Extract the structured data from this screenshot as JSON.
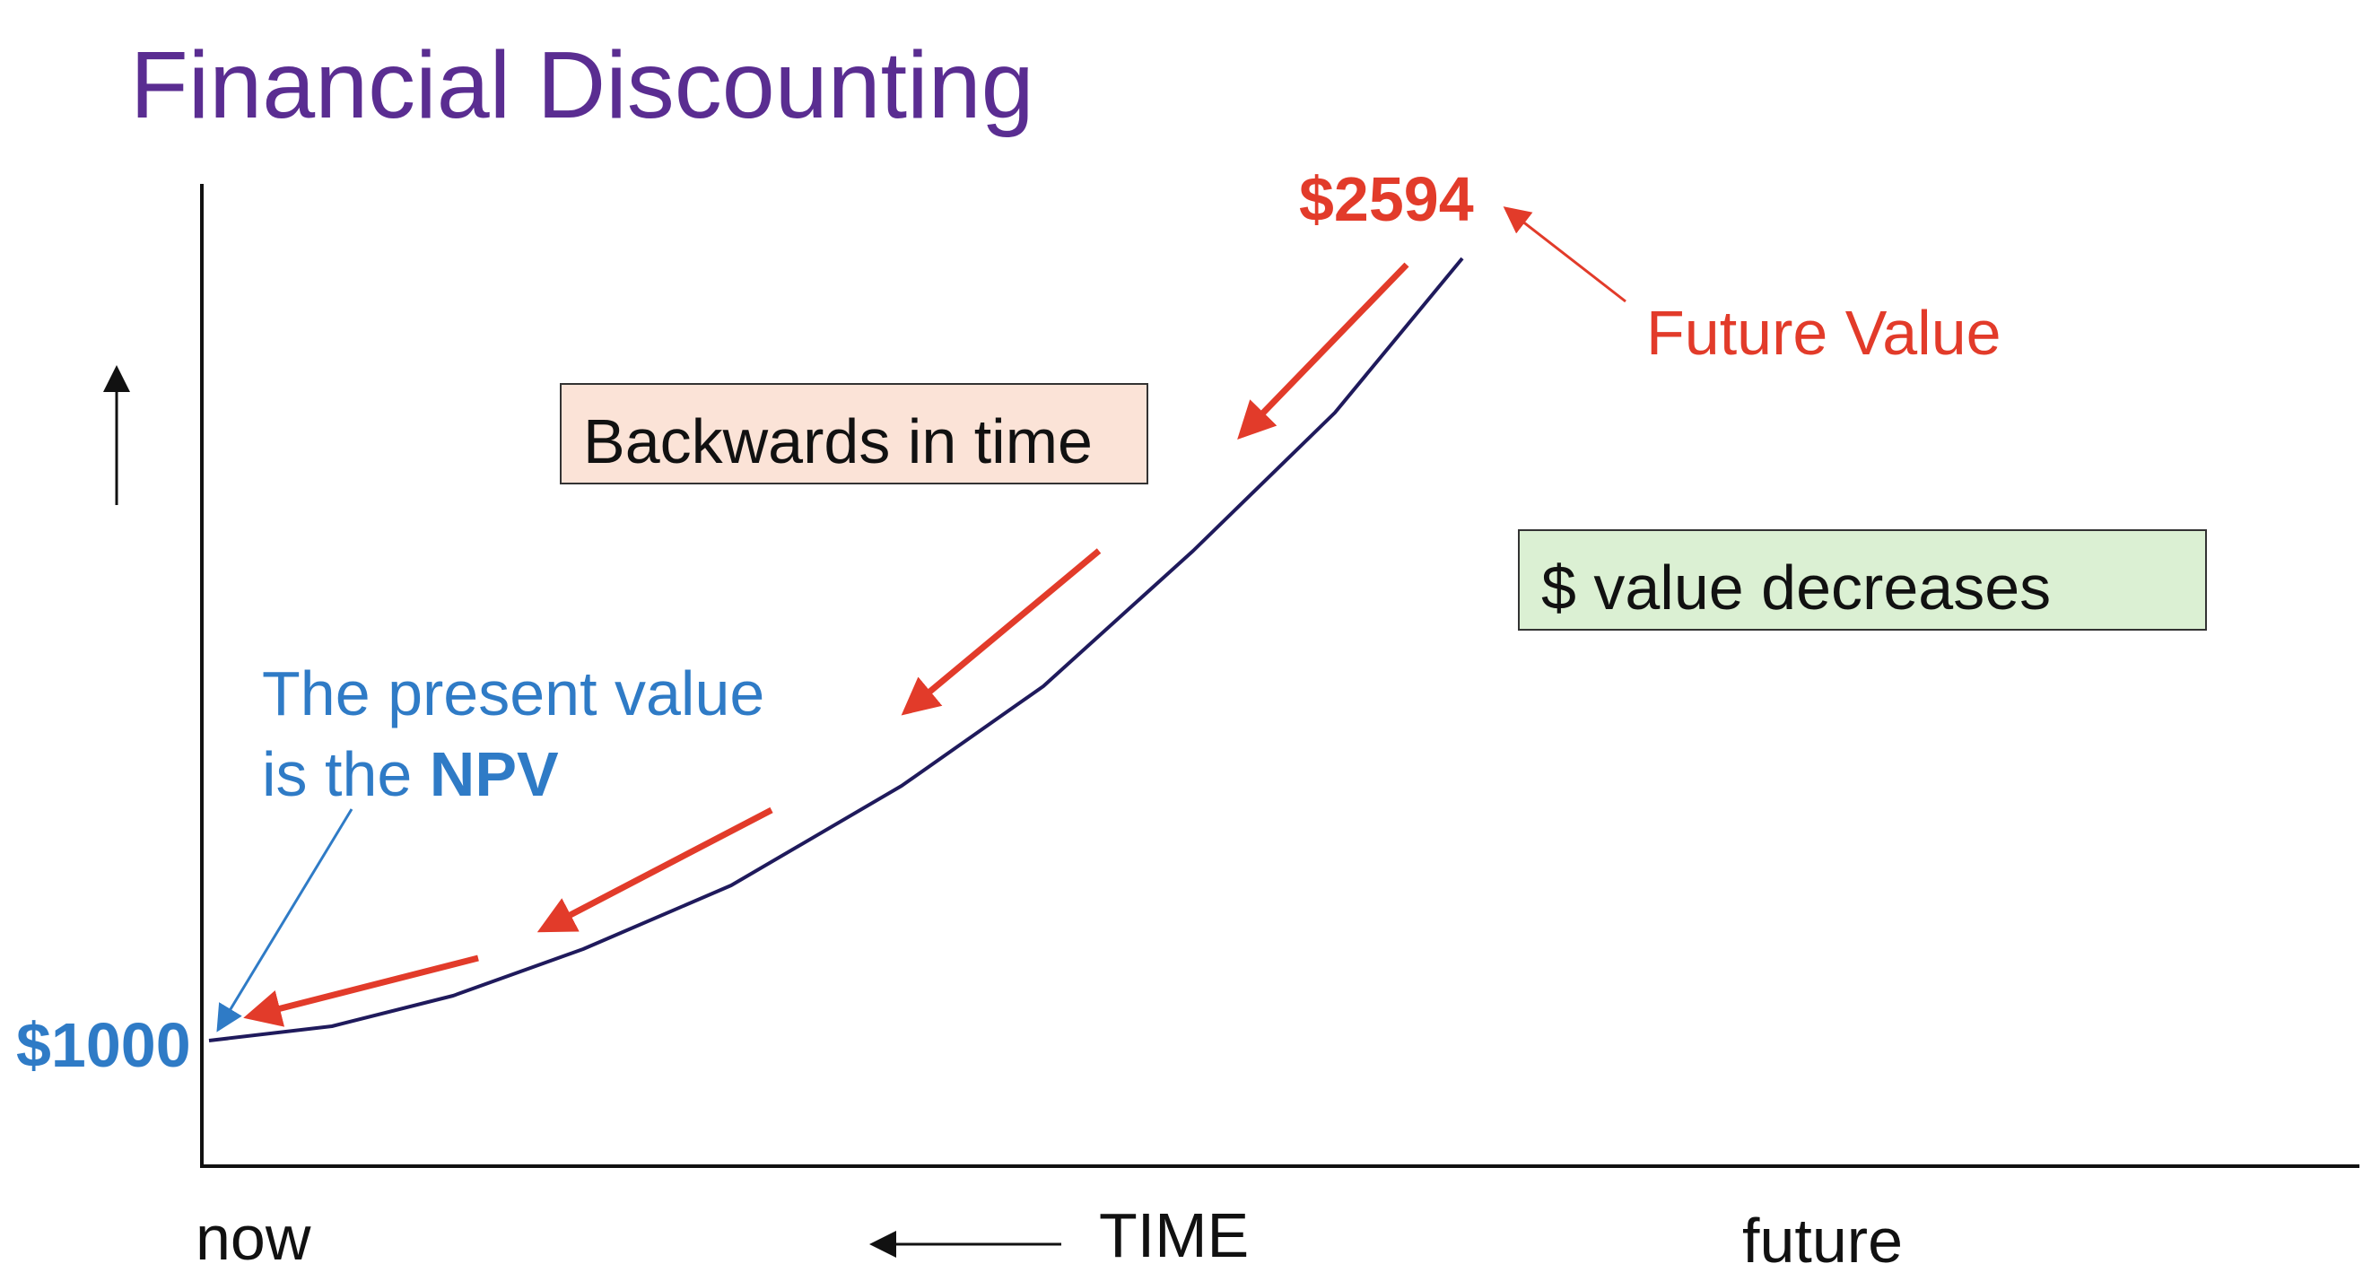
{
  "title": "Financial Discounting",
  "future_value": {
    "amount": "$2594",
    "label": "Future Value"
  },
  "present_value": {
    "amount": "$1000",
    "line1": "The present value",
    "line2_prefix": "is the ",
    "line2_bold": "NPV"
  },
  "callouts": {
    "backwards": "Backwards in time",
    "decreases": "$ value decreases"
  },
  "axis": {
    "start": "now",
    "label": "TIME",
    "end": "future"
  },
  "colors": {
    "title": "#5a2d91",
    "curve": "#1f1a5c",
    "arrows": "#e23b2a",
    "present_value": "#2f7bc6",
    "backwards_box": "#fbe3d7",
    "decreases_box": "#dbf0d3"
  }
}
